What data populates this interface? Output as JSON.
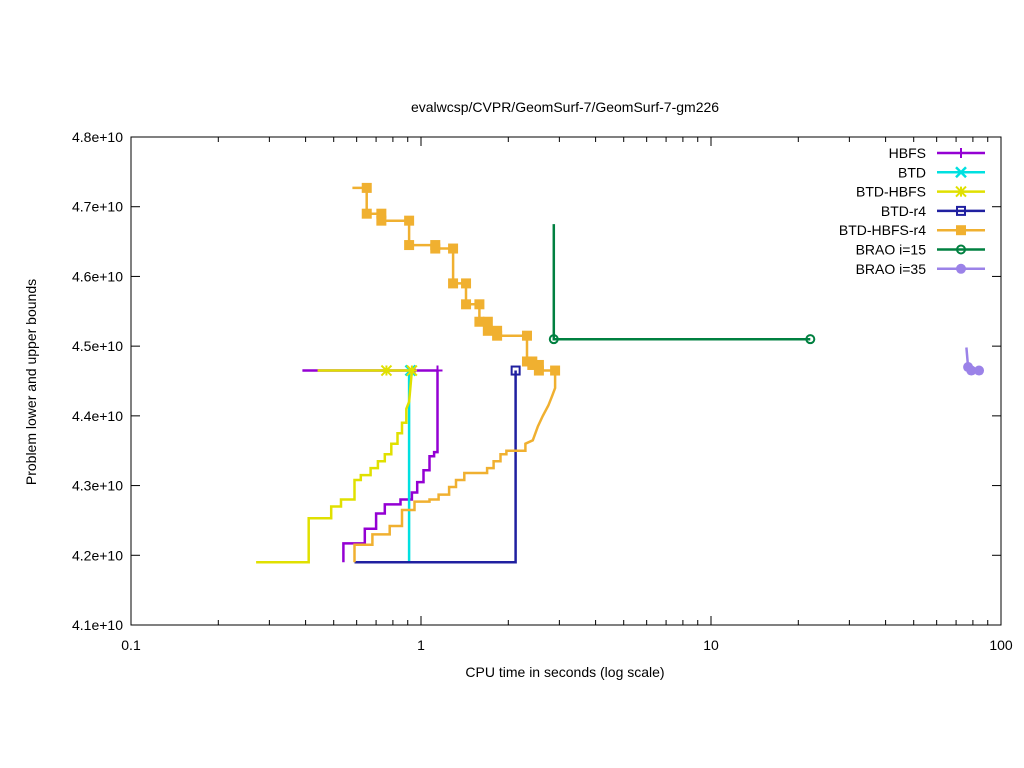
{
  "chart_data": {
    "type": "line",
    "title": "evalwcsp/CVPR/GeomSurf-7/GeomSurf-7-gm226",
    "xlabel": "CPU time in seconds (log scale)",
    "ylabel": "Problem lower and upper bounds",
    "xscale": "log",
    "xlim": [
      0.1,
      100
    ],
    "ylim": [
      41000000000,
      48000000000
    ],
    "xticks": [
      {
        "value": 0.1,
        "label": "0.1"
      },
      {
        "value": 1,
        "label": "1"
      },
      {
        "value": 10,
        "label": "10"
      },
      {
        "value": 100,
        "label": "100"
      }
    ],
    "yticks": [
      {
        "value": 41000000000,
        "label": "4.1e+10"
      },
      {
        "value": 42000000000,
        "label": "4.2e+10"
      },
      {
        "value": 43000000000,
        "label": "4.3e+10"
      },
      {
        "value": 44000000000,
        "label": "4.4e+10"
      },
      {
        "value": 45000000000,
        "label": "4.5e+10"
      },
      {
        "value": 46000000000,
        "label": "4.6e+10"
      },
      {
        "value": 47000000000,
        "label": "4.7e+10"
      },
      {
        "value": 48000000000,
        "label": "4.8e+10"
      }
    ],
    "grid": false,
    "legend_position": "top-right",
    "series": [
      {
        "name": "HBFS",
        "color": "#9400d3",
        "marker": "plus",
        "upper": [
          [
            0.39,
            44650000000
          ],
          [
            0.95,
            44650000000
          ],
          [
            1.14,
            44650000000
          ]
        ],
        "lower": [
          [
            0.54,
            41900000000
          ],
          [
            0.54,
            42170000000
          ],
          [
            0.64,
            42170000000
          ],
          [
            0.64,
            42380000000
          ],
          [
            0.7,
            42380000000
          ],
          [
            0.7,
            42600000000
          ],
          [
            0.75,
            42600000000
          ],
          [
            0.75,
            42730000000
          ],
          [
            0.85,
            42730000000
          ],
          [
            0.85,
            42800000000
          ],
          [
            0.93,
            42800000000
          ],
          [
            0.93,
            42900000000
          ],
          [
            0.97,
            42900000000
          ],
          [
            0.97,
            43050000000
          ],
          [
            1.02,
            43050000000
          ],
          [
            1.02,
            43220000000
          ],
          [
            1.07,
            43220000000
          ],
          [
            1.07,
            43420000000
          ],
          [
            1.11,
            43420000000
          ],
          [
            1.11,
            43480000000
          ],
          [
            1.14,
            43480000000
          ],
          [
            1.14,
            44650000000
          ]
        ]
      },
      {
        "name": "BTD",
        "color": "#00e0e0",
        "marker": "cross",
        "upper": [
          [
            0.91,
            44650000000
          ],
          [
            0.92,
            44650000000
          ]
        ],
        "lower": [
          [
            0.91,
            41900000000
          ],
          [
            0.91,
            44650000000
          ]
        ]
      },
      {
        "name": "BTD-HBFS",
        "color": "#e0e000",
        "marker": "star",
        "upper": [
          [
            0.44,
            44650000000
          ],
          [
            0.76,
            44650000000
          ],
          [
            0.93,
            44650000000
          ]
        ],
        "lower": [
          [
            0.27,
            41900000000
          ],
          [
            0.41,
            41900000000
          ],
          [
            0.41,
            42530000000
          ],
          [
            0.49,
            42530000000
          ],
          [
            0.49,
            42700000000
          ],
          [
            0.53,
            42700000000
          ],
          [
            0.53,
            42800000000
          ],
          [
            0.59,
            42800000000
          ],
          [
            0.59,
            43080000000
          ],
          [
            0.62,
            43080000000
          ],
          [
            0.62,
            43150000000
          ],
          [
            0.67,
            43150000000
          ],
          [
            0.67,
            43250000000
          ],
          [
            0.71,
            43250000000
          ],
          [
            0.71,
            43350000000
          ],
          [
            0.75,
            43350000000
          ],
          [
            0.75,
            43450000000
          ],
          [
            0.79,
            43450000000
          ],
          [
            0.79,
            43600000000
          ],
          [
            0.83,
            43600000000
          ],
          [
            0.83,
            43750000000
          ],
          [
            0.86,
            43750000000
          ],
          [
            0.86,
            43900000000
          ],
          [
            0.89,
            43900000000
          ],
          [
            0.89,
            44100000000
          ],
          [
            0.91,
            44200000000
          ],
          [
            0.93,
            44650000000
          ]
        ]
      },
      {
        "name": "BTD-r4",
        "color": "#2020a0",
        "marker": "square",
        "upper": [
          [
            2.12,
            44650000000
          ]
        ],
        "lower": [
          [
            0.59,
            41900000000
          ],
          [
            2.12,
            41900000000
          ],
          [
            2.12,
            44650000000
          ]
        ]
      },
      {
        "name": "BTD-HBFS-r4",
        "color": "#f0b030",
        "marker": "filled-square",
        "upper": [
          [
            0.58,
            47270000000
          ],
          [
            0.65,
            47270000000
          ],
          [
            0.65,
            46900000000
          ],
          [
            0.73,
            46900000000
          ],
          [
            0.73,
            46800000000
          ],
          [
            0.91,
            46800000000
          ],
          [
            0.91,
            46450000000
          ],
          [
            1.12,
            46450000000
          ],
          [
            1.12,
            46400000000
          ],
          [
            1.29,
            46400000000
          ],
          [
            1.29,
            45900000000
          ],
          [
            1.43,
            45900000000
          ],
          [
            1.43,
            45600000000
          ],
          [
            1.59,
            45600000000
          ],
          [
            1.59,
            45350000000
          ],
          [
            1.7,
            45350000000
          ],
          [
            1.7,
            45220000000
          ],
          [
            1.83,
            45220000000
          ],
          [
            1.83,
            45150000000
          ],
          [
            2.32,
            45150000000
          ],
          [
            2.32,
            44780000000
          ],
          [
            2.42,
            44780000000
          ],
          [
            2.42,
            44730000000
          ],
          [
            2.55,
            44730000000
          ],
          [
            2.55,
            44650000000
          ],
          [
            2.9,
            44650000000
          ]
        ],
        "lower": [
          [
            0.59,
            41900000000
          ],
          [
            0.59,
            42150000000
          ],
          [
            0.68,
            42150000000
          ],
          [
            0.68,
            42300000000
          ],
          [
            0.78,
            42300000000
          ],
          [
            0.78,
            42420000000
          ],
          [
            0.86,
            42420000000
          ],
          [
            0.86,
            42650000000
          ],
          [
            0.95,
            42650000000
          ],
          [
            0.95,
            42770000000
          ],
          [
            1.07,
            42770000000
          ],
          [
            1.07,
            42800000000
          ],
          [
            1.15,
            42800000000
          ],
          [
            1.15,
            42870000000
          ],
          [
            1.25,
            42870000000
          ],
          [
            1.25,
            42980000000
          ],
          [
            1.32,
            42980000000
          ],
          [
            1.32,
            43080000000
          ],
          [
            1.41,
            43080000000
          ],
          [
            1.41,
            43180000000
          ],
          [
            1.69,
            43180000000
          ],
          [
            1.69,
            43250000000
          ],
          [
            1.78,
            43250000000
          ],
          [
            1.78,
            43350000000
          ],
          [
            1.88,
            43350000000
          ],
          [
            1.88,
            43450000000
          ],
          [
            1.97,
            43450000000
          ],
          [
            1.97,
            43500000000
          ],
          [
            2.29,
            43500000000
          ],
          [
            2.29,
            43600000000
          ],
          [
            2.43,
            43650000000
          ],
          [
            2.53,
            43850000000
          ],
          [
            2.63,
            44000000000
          ],
          [
            2.75,
            44150000000
          ],
          [
            2.83,
            44280000000
          ],
          [
            2.9,
            44400000000
          ],
          [
            2.9,
            44650000000
          ]
        ]
      },
      {
        "name": "BRAO i=15",
        "color": "#008040",
        "marker": "circle",
        "upper": [
          [
            2.87,
            46750000000
          ],
          [
            2.87,
            45100000000
          ],
          [
            22.0,
            45100000000
          ]
        ],
        "lower": []
      },
      {
        "name": "BRAO i=35",
        "color": "#9b82e8",
        "marker": "filled-circle",
        "upper": [
          [
            76.0,
            44980000000
          ],
          [
            77.0,
            44700000000
          ],
          [
            79.0,
            44650000000
          ],
          [
            84.0,
            44650000000
          ]
        ],
        "lower": [
          [
            79.0,
            44650000000
          ],
          [
            84.0,
            44650000000
          ]
        ]
      }
    ]
  }
}
